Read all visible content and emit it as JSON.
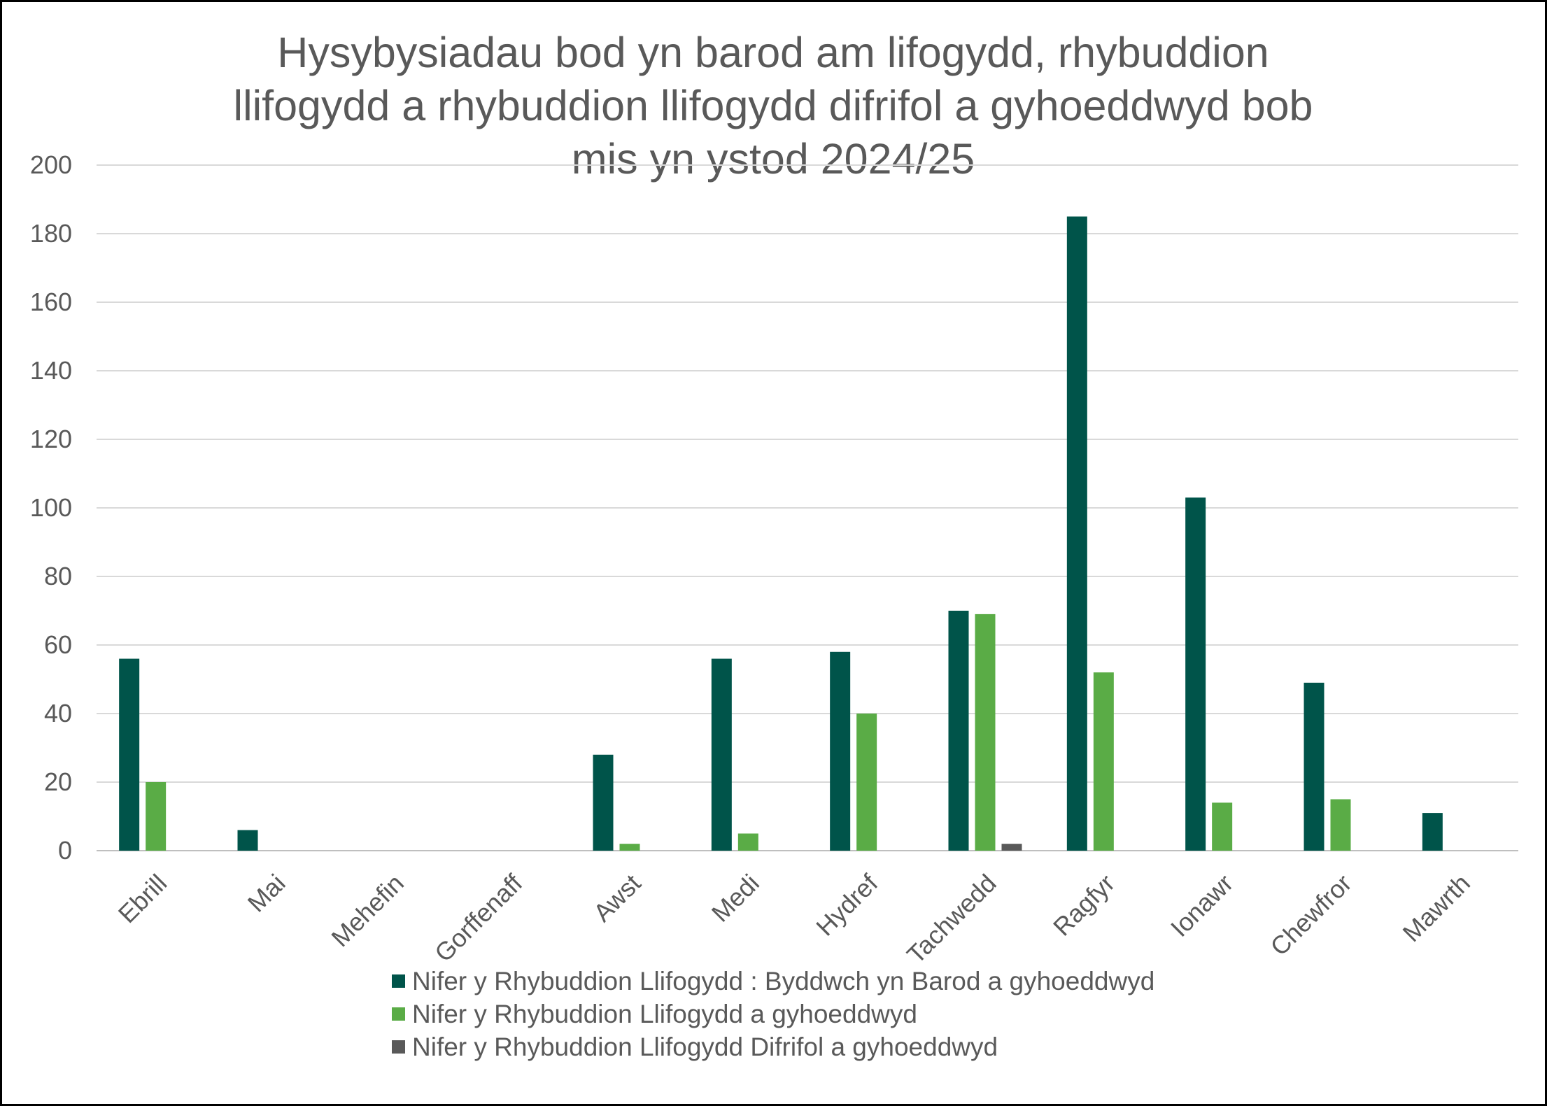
{
  "chart_data": {
    "type": "bar",
    "title_lines": [
      "Hysybysiadau bod yn barod am lifogydd, rhybuddion",
      "llifogydd a rhybuddion llifogydd difrifol a gyhoeddwyd bob",
      "mis yn ystod 2024/25"
    ],
    "categories": [
      "Ebrill",
      "Mai",
      "Mehefin",
      "Gorffenaff",
      "Awst",
      "Medi",
      "Hydref",
      "Tachwedd",
      "Ragfyr",
      "Ionawr",
      "Chewfror",
      "Mawrth"
    ],
    "series": [
      {
        "name": "Nifer y Rhybuddion Llifogydd : Byddwch yn Barod a gyhoeddwyd",
        "color": "#00544a",
        "values": [
          56,
          6,
          0,
          0,
          28,
          56,
          58,
          70,
          185,
          103,
          49,
          11
        ]
      },
      {
        "name": "Nifer y Rhybuddion Llifogydd a gyhoeddwyd",
        "color": "#5aac46",
        "values": [
          20,
          0,
          0,
          0,
          2,
          5,
          40,
          69,
          52,
          14,
          15,
          0
        ]
      },
      {
        "name": "Nifer y Rhybuddion Llifogydd Difrifol a gyhoeddwyd",
        "color": "#595959",
        "values": [
          0,
          0,
          0,
          0,
          0,
          0,
          0,
          2,
          0,
          0,
          0,
          0
        ]
      }
    ],
    "yticks": [
      0,
      20,
      40,
      60,
      80,
      100,
      120,
      140,
      160,
      180,
      200
    ],
    "ylim": [
      0,
      200
    ],
    "xlabel": "",
    "ylabel": "",
    "grid": true,
    "legend_position": "bottom"
  }
}
